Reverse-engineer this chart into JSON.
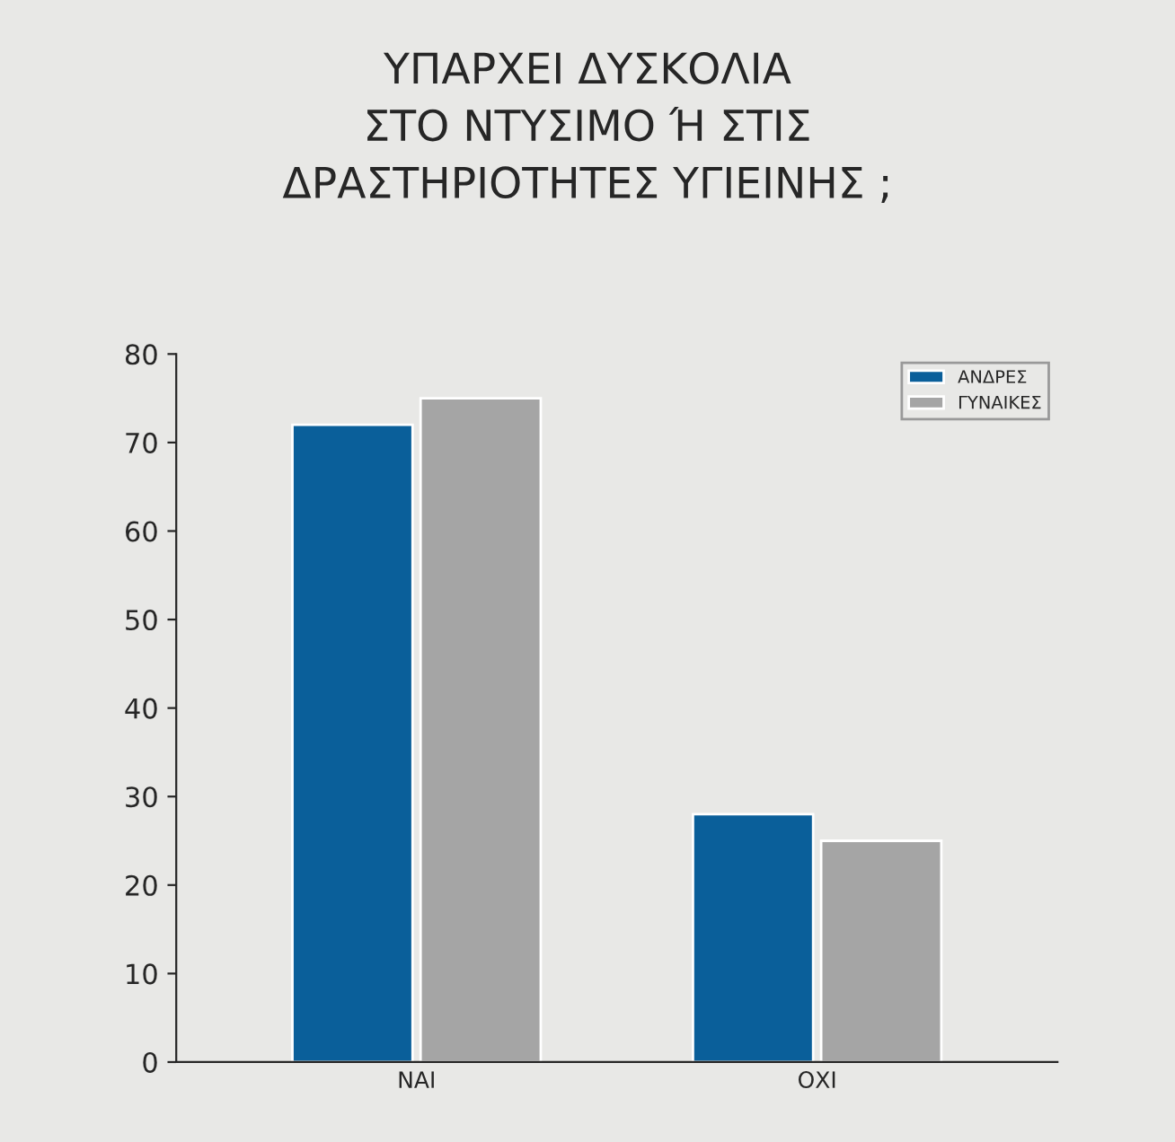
{
  "chart_data": {
    "type": "bar",
    "title": "ΥΠΑΡΧΕΙ ΔΥΣΚΟΛΙΑ\nΣΤΟ ΝΤΥΣΙΜΟ Ή ΣΤΙΣ\nΔΡΑΣΤΗΡΙΟΤΗΤΕΣ ΥΓΙΕΙΝΗΣ ;",
    "categories": [
      "ΝΑΙ",
      "ΟΧΙ"
    ],
    "series": [
      {
        "name": "ΑΝΔΡΕΣ",
        "color": "#0a5f9a",
        "values": [
          72,
          28
        ]
      },
      {
        "name": "ΓΥΝΑΙΚΕΣ",
        "color": "#a5a5a5",
        "values": [
          75,
          25
        ]
      }
    ],
    "ylim": [
      0,
      80
    ],
    "yticks": [
      0,
      10,
      20,
      30,
      40,
      50,
      60,
      70,
      80
    ],
    "grid": false,
    "legend": "top right"
  }
}
